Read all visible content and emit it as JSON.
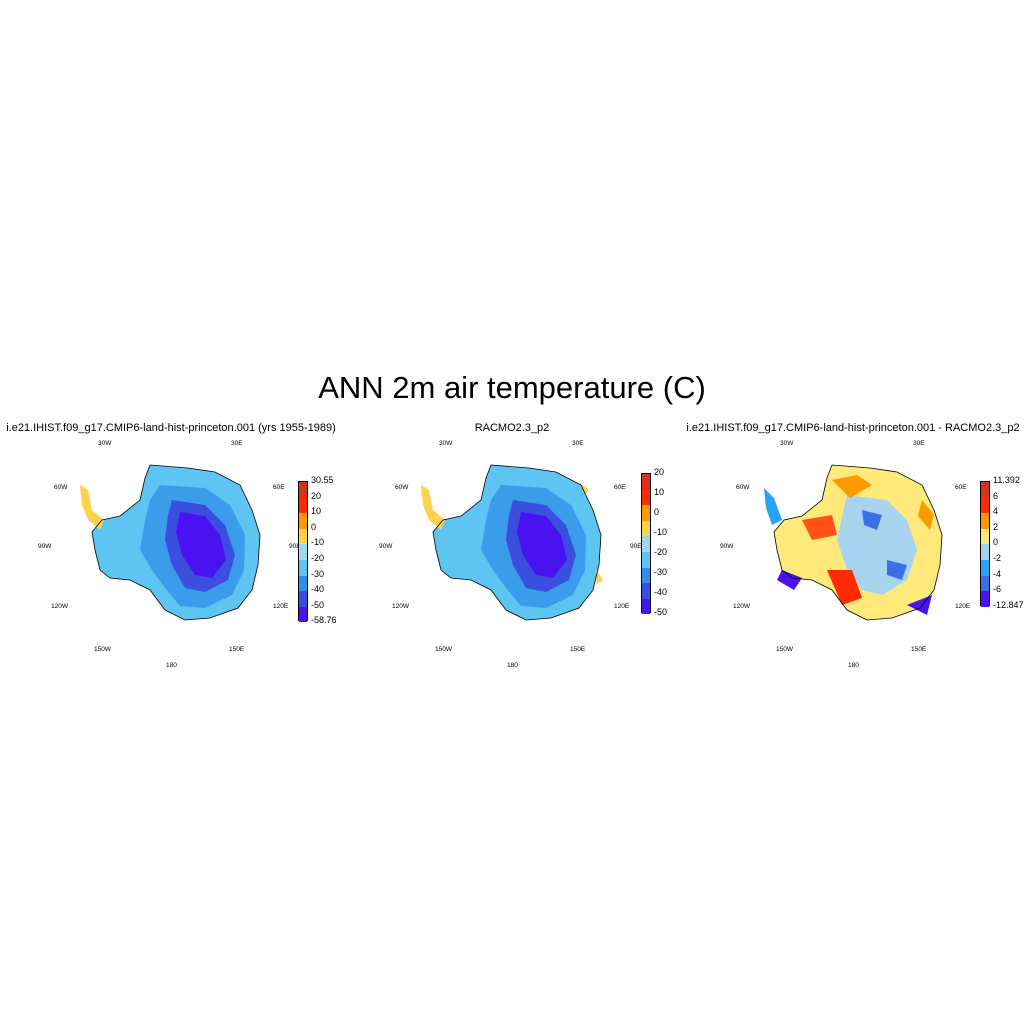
{
  "title": "ANN 2m air temperature (C)",
  "lon_labels": {
    "w30": "30W",
    "e30": "30E",
    "w60": "60W",
    "e60": "60E",
    "w90": "90W",
    "e90": "90E",
    "w120": "120W",
    "e120": "120E",
    "w150": "150W",
    "e150": "150E",
    "s180": "180"
  },
  "panels": [
    {
      "title": "i.e21.IHIST.f09_g17.CMIP6-land-hist-princeton.001 (yrs 1955-1989)",
      "colorbar": {
        "labels": [
          "30.55",
          "20",
          "10",
          "0",
          "-10",
          "-20",
          "-30",
          "-40",
          "-50",
          "-58.76"
        ],
        "colors": [
          "#d7301f",
          "#ff2a00",
          "#ff9900",
          "#ffd24d",
          "#9fd6f0",
          "#5ec4f2",
          "#2f8fe8",
          "#3a4fe0",
          "#4a12f0"
        ]
      }
    },
    {
      "title": "RACMO2.3_p2",
      "colorbar": {
        "labels": [
          "20",
          "10",
          "0",
          "-10",
          "-20",
          "-30",
          "-40",
          "-50"
        ],
        "colors": [
          "#d7301f",
          "#ff2a00",
          "#ff9900",
          "#ffd24d",
          "#9fd6f0",
          "#5ec4f2",
          "#2f8fe8",
          "#3a4fe0",
          "#4a12f0"
        ]
      }
    },
    {
      "title": "i.e21.IHIST.f09_g17.CMIP6-land-hist-princeton.001 - RACMO2.3_p2",
      "colorbar": {
        "labels": [
          "11.392",
          "6",
          "4",
          "2",
          "0",
          "-2",
          "-4",
          "-6",
          "-12.847"
        ],
        "colors": [
          "#d7301f",
          "#ff2a00",
          "#ff9900",
          "#ffe97a",
          "#a8d4f0",
          "#27a4f5",
          "#3a6fe8",
          "#4a12f0"
        ]
      }
    }
  ]
}
